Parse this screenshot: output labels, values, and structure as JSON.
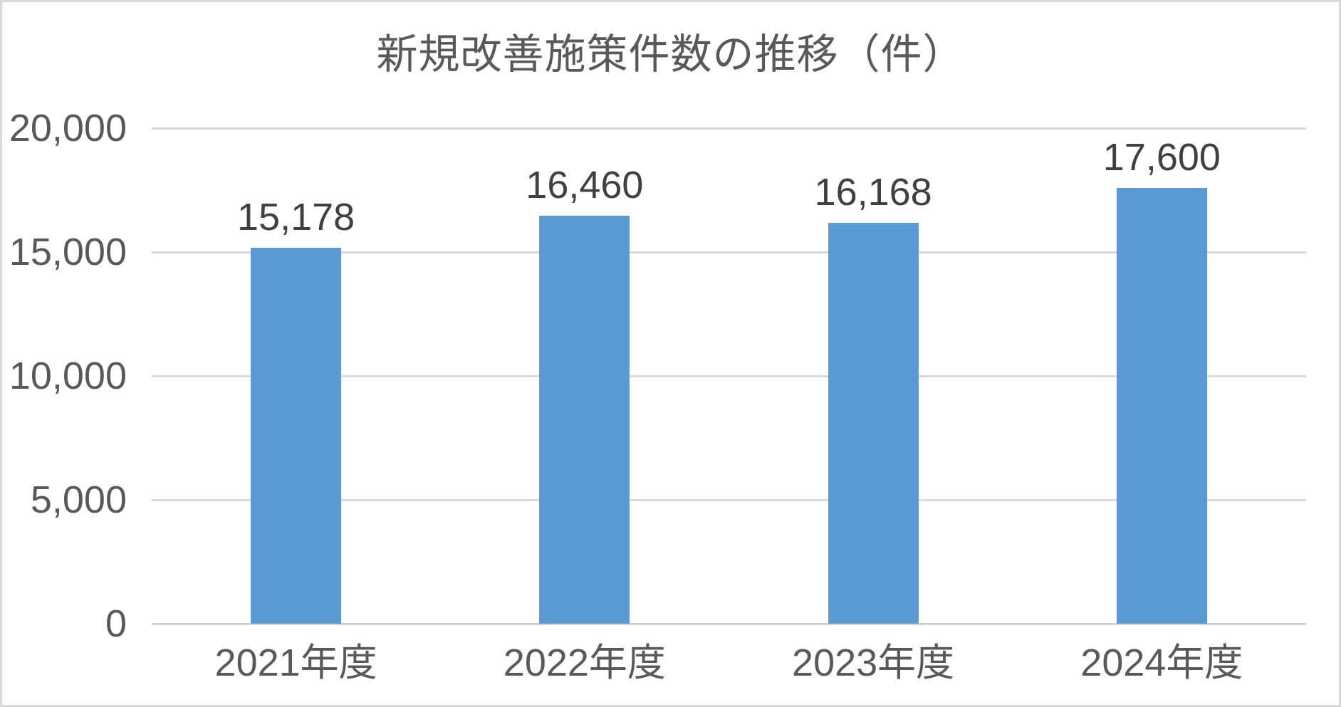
{
  "chart_title": "新規改善施策件数の推移（件）",
  "chart_data": {
    "type": "bar",
    "title": "新規改善施策件数の推移（件）",
    "categories": [
      "2021年度",
      "2022年度",
      "2023年度",
      "2024年度"
    ],
    "values": [
      15178,
      16460,
      16168,
      17600
    ],
    "value_labels": [
      "15,178",
      "16,460",
      "16,168",
      "17,600"
    ],
    "xlabel": "",
    "ylabel": "",
    "ylim": [
      0,
      20000
    ],
    "yticks": [
      0,
      5000,
      10000,
      15000,
      20000
    ],
    "ytick_labels": [
      "0",
      "5,000",
      "10,000",
      "15,000",
      "20,000"
    ],
    "grid": true,
    "legend": false,
    "bar_color": "#5b9bd5",
    "gridline_color": "#d9d9d9",
    "title_color": "#595959",
    "axis_label_color": "#595959",
    "value_label_color": "#404040"
  }
}
